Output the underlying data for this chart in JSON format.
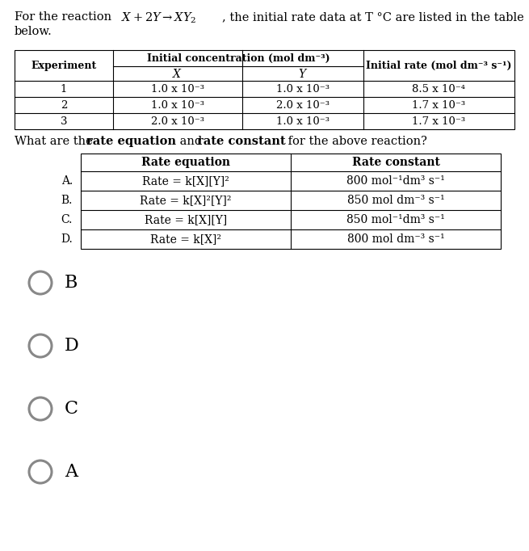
{
  "title_line1_pre": "For the reaction ",
  "title_line1_math": "X + 2Y → XY₂",
  "title_line1_post": ", the initial rate data at T °C are listed in the table",
  "title_line2": "below.",
  "t1_exp_header": "Experiment",
  "t1_conc_header": "Initial concentration (mol dm⁻³)",
  "t1_x_header": "X",
  "t1_y_header": "Y",
  "t1_rate_header": "Initial rate (mol dm⁻³ s⁻¹)",
  "t1_rows": [
    [
      "1",
      "1.0 x 10⁻³",
      "1.0 x 10⁻³",
      "8.5 x 10⁻⁴"
    ],
    [
      "2",
      "1.0 x 10⁻³",
      "2.0 x 10⁻³",
      "1.7 x 10⁻³"
    ],
    [
      "3",
      "2.0 x 10⁻³",
      "1.0 x 10⁻³",
      "1.7 x 10⁻³"
    ]
  ],
  "q_pre": "What are the ",
  "q_bold1": "rate equation",
  "q_mid": " and ",
  "q_bold2": "rate constant",
  "q_post": " for the above reaction?",
  "t2_col1_header": "Rate equation",
  "t2_col2_header": "Rate constant",
  "t2_labels": [
    "A.",
    "B.",
    "C.",
    "D."
  ],
  "t2_rate_eqs": [
    "Rate = k[X][Y]²",
    "Rate = k[X]²[Y]²",
    "Rate = k[X][Y]",
    "Rate = k[X]²"
  ],
  "t2_rate_consts": [
    "800 mol⁻¹dm³ s⁻¹",
    "850 mol dm⁻³ s⁻¹",
    "850 mol⁻¹dm³ s⁻¹",
    "800 mol dm⁻³ s⁻¹"
  ],
  "options": [
    "B",
    "D",
    "C",
    "A"
  ],
  "circle_color": "#888888",
  "bg_color": "#ffffff"
}
